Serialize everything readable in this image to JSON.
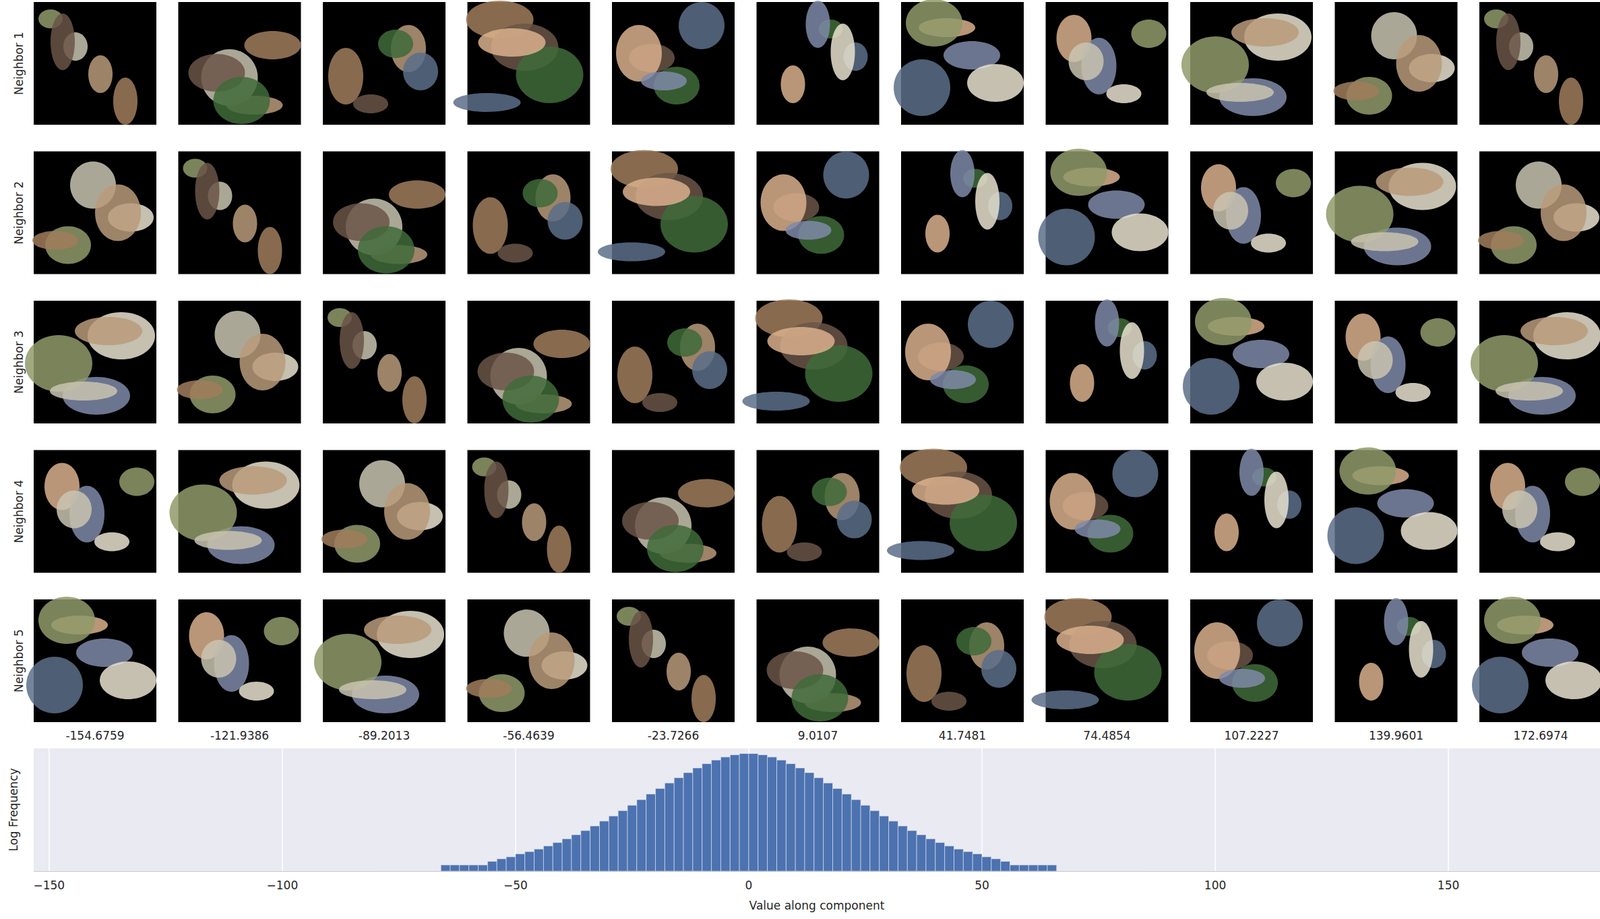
{
  "chart_data": {
    "type": "histogram",
    "xlabel": "Value along component",
    "ylabel": "Log Frequency",
    "bins": [
      -80,
      -78,
      -76,
      -74,
      -72,
      -70,
      -68,
      -66,
      -64,
      -62,
      -60,
      -58,
      -56,
      -54,
      -52,
      -50,
      -48,
      -46,
      -44,
      -42,
      -40,
      -38,
      -36,
      -34,
      -32,
      -30,
      -28,
      -26,
      -24,
      -22,
      -20,
      -18,
      -16,
      -14,
      -12,
      -10,
      -8,
      -6,
      -4,
      -2,
      0,
      2,
      4,
      6,
      8,
      10,
      12,
      14,
      16,
      18,
      20,
      22,
      24,
      26,
      28,
      30,
      32,
      34,
      36,
      38,
      40,
      42,
      44,
      46,
      48,
      50,
      52,
      54,
      56,
      58,
      60,
      62,
      64,
      66,
      68,
      70,
      72,
      74,
      76,
      78,
      80,
      82,
      84
    ],
    "counts": [
      1,
      1,
      1,
      1,
      1,
      1,
      1,
      2,
      2,
      2,
      2,
      2,
      3,
      4,
      5,
      7,
      9,
      12,
      17,
      25,
      38,
      60,
      96,
      161,
      279,
      497,
      904,
      1660,
      3120,
      5870,
      11000,
      20400,
      37000,
      65500,
      111000,
      179000,
      270000,
      378000,
      486000,
      560000,
      560000,
      486000,
      378000,
      270000,
      179000,
      111000,
      65500,
      37000,
      20400,
      11000,
      5870,
      3120,
      1660,
      904,
      497,
      279,
      161,
      96,
      60,
      38,
      25,
      17,
      12,
      9,
      7,
      5,
      4,
      3,
      2,
      2,
      2,
      2,
      2,
      1,
      1,
      1,
      1,
      1,
      1,
      1,
      1,
      1
    ],
    "color": "#4c72b0",
    "xlim": [
      -153.3,
      182.5
    ],
    "xticks": [
      {
        "value": -150,
        "label": "−150"
      },
      {
        "value": -100,
        "label": "−100"
      },
      {
        "value": -50,
        "label": "−50"
      },
      0,
      50,
      100,
      150
    ],
    "ylim": [
      1,
      1000000
    ],
    "yticks": [],
    "log": "y",
    "grid": true,
    "tick_labels": "x"
  },
  "image_grid": {
    "row_labels": [
      "Neighbor 1",
      "Neighbor 2",
      "Neighbor 3",
      "Neighbor 4",
      "Neighbor 5"
    ],
    "column_values": [
      -154.6759,
      -121.9386,
      -89.2013,
      -56.4639,
      -23.7266,
      9.0107,
      41.7481,
      74.4854,
      107.2227,
      139.9601,
      172.6974
    ]
  }
}
